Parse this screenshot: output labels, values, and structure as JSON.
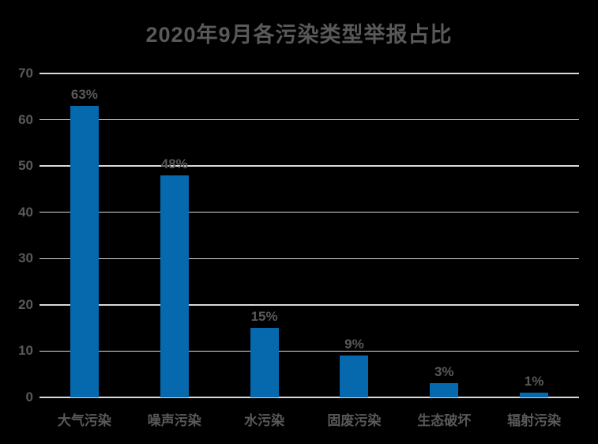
{
  "chart_data": {
    "type": "bar",
    "title": "2020年9月各污染类型举报占比",
    "categories": [
      "大气污染",
      "噪声污染",
      "水污染",
      "固废污染",
      "生态破坏",
      "辐射污染"
    ],
    "values": [
      63,
      48,
      15,
      9,
      3,
      1
    ],
    "value_labels": [
      "63%",
      "48%",
      "15%",
      "9%",
      "3%",
      "1%"
    ],
    "xlabel": "",
    "ylabel": "",
    "ylim": [
      0,
      70
    ],
    "yticks": [
      0,
      10,
      20,
      30,
      40,
      50,
      60,
      70
    ],
    "grid": "horizontal",
    "legend": "none",
    "colors": {
      "background": "#000000",
      "bar": "#0669AE",
      "text": "#595959",
      "gridline": "#D9D9D9"
    }
  }
}
